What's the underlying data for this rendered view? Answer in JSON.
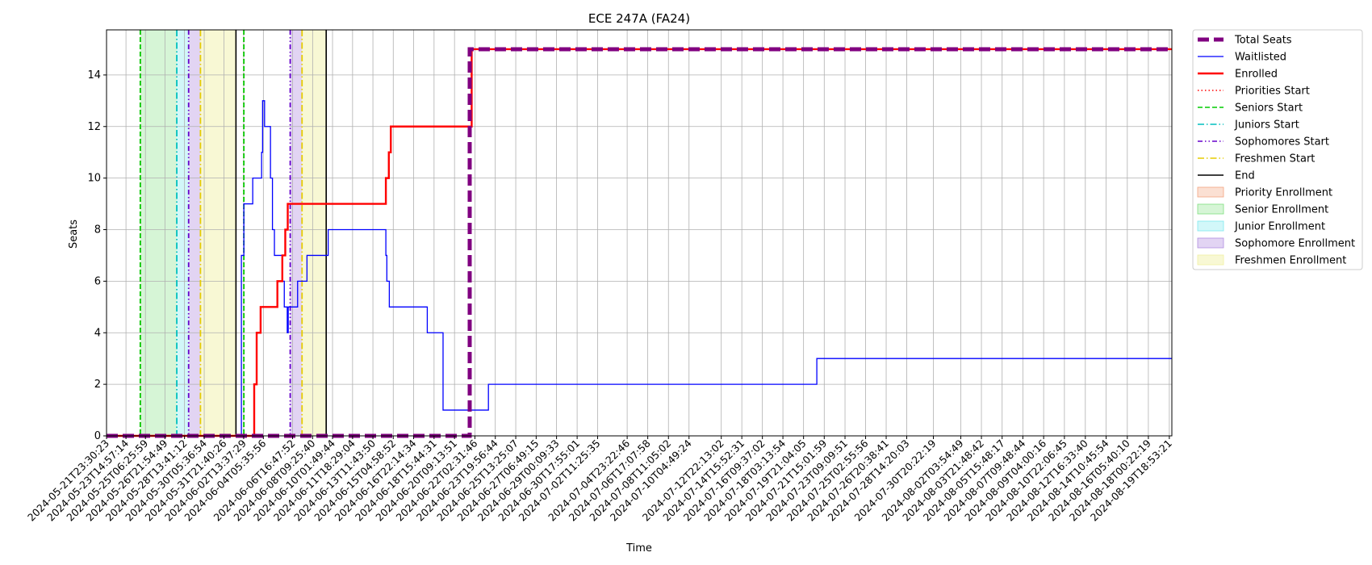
{
  "chart_data": {
    "type": "line",
    "title": "ECE 247A (FA24)",
    "xlabel": "Time",
    "ylabel": "Seats",
    "ylim": [
      0,
      15.75
    ],
    "yticks": [
      0,
      2,
      4,
      6,
      8,
      10,
      12,
      14
    ],
    "x_range": [
      "2024-05-21T23:30:23",
      "2024-08-20T00:00:00"
    ],
    "grid": true,
    "legend_position": "outside-right",
    "xtick_labels": [
      "2024-05-21T23:30:23",
      "2024-05-23T14:57:14",
      "2024-05-25T06:25:59",
      "2024-05-26T21:54:49",
      "2024-05-28T13:41:12",
      "2024-05-30T05:36:54",
      "2024-05-31T21:40:26",
      "2024-06-02T13:37:29",
      "2024-06-04T05:35:56",
      "2024-06-06T16:47:52",
      "2024-06-08T09:25:40",
      "2024-06-10T01:49:44",
      "2024-06-11T18:29:04",
      "2024-06-13T11:43:50",
      "2024-06-15T04:58:52",
      "2024-06-16T22:14:34",
      "2024-06-18T15:44:31",
      "2024-06-20T09:13:51",
      "2024-06-22T02:31:46",
      "2024-06-23T19:56:44",
      "2024-06-25T13:25:07",
      "2024-06-27T06:49:15",
      "2024-06-29T00:09:33",
      "2024-06-30T17:55:01",
      "2024-07-02T11:25:35",
      "2024-07-04T23:22:46",
      "2024-07-06T17:07:58",
      "2024-07-08T11:05:02",
      "2024-07-10T04:49:24",
      "2024-07-12T22:13:02",
      "2024-07-14T15:52:31",
      "2024-07-16T09:37:02",
      "2024-07-18T03:13:54",
      "2024-07-19T21:04:05",
      "2024-07-21T15:01:59",
      "2024-07-23T09:09:51",
      "2024-07-25T02:55:56",
      "2024-07-26T20:38:41",
      "2024-07-28T14:20:03",
      "2024-07-30T20:22:19",
      "2024-08-02T03:54:49",
      "2024-08-03T21:48:42",
      "2024-08-05T15:48:17",
      "2024-08-07T09:48:44",
      "2024-08-09T04:00:16",
      "2024-08-10T22:06:45",
      "2024-08-12T16:33:40",
      "2024-08-14T10:45:54",
      "2024-08-16T05:40:10",
      "2024-08-18T00:22:19",
      "2024-08-19T18:53:21"
    ],
    "series": [
      {
        "name": "Total Seats",
        "color": "#800080",
        "style": "dashed-thick",
        "points": [
          [
            "2024-05-21T23:30:23",
            0
          ],
          [
            "2024-06-21T16:00:00",
            0
          ],
          [
            "2024-06-21T16:00:00",
            15
          ],
          [
            "2024-08-20T00:00:00",
            15
          ]
        ]
      },
      {
        "name": "Waitlisted",
        "color": "#0000ff",
        "style": "solid-thin",
        "points": [
          [
            "2024-05-21T23:30:23",
            0
          ],
          [
            "2024-06-02T09:00:00",
            0
          ],
          [
            "2024-06-02T09:00:00",
            7
          ],
          [
            "2024-06-02T14:00:00",
            7
          ],
          [
            "2024-06-02T14:00:00",
            9
          ],
          [
            "2024-06-03T08:00:00",
            9
          ],
          [
            "2024-06-03T08:00:00",
            10
          ],
          [
            "2024-06-04T02:00:00",
            10
          ],
          [
            "2024-06-04T02:00:00",
            11
          ],
          [
            "2024-06-04T04:00:00",
            11
          ],
          [
            "2024-06-04T04:00:00",
            13
          ],
          [
            "2024-06-04T08:00:00",
            13
          ],
          [
            "2024-06-04T08:00:00",
            12
          ],
          [
            "2024-06-04T20:00:00",
            12
          ],
          [
            "2024-06-04T20:00:00",
            10
          ],
          [
            "2024-06-05T00:00:00",
            10
          ],
          [
            "2024-06-05T00:00:00",
            8
          ],
          [
            "2024-06-05T04:00:00",
            8
          ],
          [
            "2024-06-05T04:00:00",
            7
          ],
          [
            "2024-06-05T20:00:00",
            7
          ],
          [
            "2024-06-05T20:00:00",
            6
          ],
          [
            "2024-06-06T00:00:00",
            6
          ],
          [
            "2024-06-06T00:00:00",
            5
          ],
          [
            "2024-06-06T06:00:00",
            5
          ],
          [
            "2024-06-06T06:00:00",
            4
          ],
          [
            "2024-06-06T08:00:00",
            4
          ],
          [
            "2024-06-06T08:00:00",
            5
          ],
          [
            "2024-06-07T03:00:00",
            5
          ],
          [
            "2024-06-07T03:00:00",
            6
          ],
          [
            "2024-06-07T22:00:00",
            6
          ],
          [
            "2024-06-07T22:00:00",
            7
          ],
          [
            "2024-06-09T17:00:00",
            7
          ],
          [
            "2024-06-09T17:00:00",
            8
          ],
          [
            "2024-06-14T14:00:00",
            8
          ],
          [
            "2024-06-14T14:00:00",
            7
          ],
          [
            "2024-06-14T16:00:00",
            7
          ],
          [
            "2024-06-14T16:00:00",
            6
          ],
          [
            "2024-06-14T21:00:00",
            6
          ],
          [
            "2024-06-14T21:00:00",
            5
          ],
          [
            "2024-06-18T02:00:00",
            5
          ],
          [
            "2024-06-18T02:00:00",
            4
          ],
          [
            "2024-06-19T10:00:00",
            4
          ],
          [
            "2024-06-19T10:00:00",
            1
          ],
          [
            "2024-06-23T06:00:00",
            1
          ],
          [
            "2024-06-23T06:00:00",
            2
          ],
          [
            "2024-07-21T00:00:00",
            2
          ],
          [
            "2024-07-21T00:00:00",
            3
          ],
          [
            "2024-08-20T00:00:00",
            3
          ]
        ]
      },
      {
        "name": "Enrolled",
        "color": "#ff0000",
        "style": "solid-thick",
        "points": [
          [
            "2024-05-21T23:30:23",
            0
          ],
          [
            "2024-06-03T11:00:00",
            0
          ],
          [
            "2024-06-03T11:00:00",
            2
          ],
          [
            "2024-06-03T16:00:00",
            2
          ],
          [
            "2024-06-03T16:00:00",
            4
          ],
          [
            "2024-06-04T00:00:00",
            4
          ],
          [
            "2024-06-04T00:00:00",
            5
          ],
          [
            "2024-06-05T10:00:00",
            5
          ],
          [
            "2024-06-05T10:00:00",
            6
          ],
          [
            "2024-06-05T20:00:00",
            6
          ],
          [
            "2024-06-05T20:00:00",
            7
          ],
          [
            "2024-06-06T02:00:00",
            7
          ],
          [
            "2024-06-06T02:00:00",
            8
          ],
          [
            "2024-06-06T07:00:00",
            8
          ],
          [
            "2024-06-06T07:00:00",
            9
          ],
          [
            "2024-06-14T14:00:00",
            9
          ],
          [
            "2024-06-14T14:00:00",
            10
          ],
          [
            "2024-06-14T20:00:00",
            10
          ],
          [
            "2024-06-14T20:00:00",
            11
          ],
          [
            "2024-06-15T00:00:00",
            11
          ],
          [
            "2024-06-15T00:00:00",
            12
          ],
          [
            "2024-06-21T20:00:00",
            12
          ],
          [
            "2024-06-21T20:00:00",
            15
          ],
          [
            "2024-08-20T00:00:00",
            15
          ]
        ]
      }
    ],
    "vlines": [
      {
        "name": "Priorities Start",
        "color": "#ff0000",
        "style": "dotted",
        "x": [
          "2024-05-24T20:00:00",
          "2024-06-02T14:00:00"
        ]
      },
      {
        "name": "Seniors Start",
        "color": "#00cc00",
        "style": "dashed",
        "x": [
          "2024-05-24T20:00:00",
          "2024-06-02T14:00:00"
        ]
      },
      {
        "name": "Juniors Start",
        "color": "#00bfbf",
        "style": "dashdot",
        "x": [
          "2024-05-27T22:00:00"
        ]
      },
      {
        "name": "Sophomores Start",
        "color": "#6600cc",
        "style": "dashdotdot",
        "x": [
          "2024-05-28T22:00:00",
          "2024-06-06T12:00:00"
        ]
      },
      {
        "name": "Freshmen Start",
        "color": "#e6cc00",
        "style": "dashdot",
        "x": [
          "2024-05-29T22:00:00",
          "2024-06-07T12:00:00"
        ]
      },
      {
        "name": "End",
        "color": "#000000",
        "style": "solid",
        "x": [
          "2024-06-01T22:00:00",
          "2024-06-09T13:00:00"
        ]
      }
    ],
    "spans": [
      {
        "name": "Priority Enrollment",
        "color": "#f4a582",
        "opacity": 0.35,
        "ranges": []
      },
      {
        "name": "Senior Enrollment",
        "color": "#7fe07f",
        "opacity": 0.32,
        "ranges": [
          [
            "2024-05-24T20:00:00",
            "2024-05-27T22:00:00"
          ]
        ]
      },
      {
        "name": "Junior Enrollment",
        "color": "#7fe8ef",
        "opacity": 0.35,
        "ranges": [
          [
            "2024-05-27T22:00:00",
            "2024-05-28T22:00:00"
          ]
        ]
      },
      {
        "name": "Sophomore Enrollment",
        "color": "#b28fe0",
        "opacity": 0.38,
        "ranges": [
          [
            "2024-05-28T22:00:00",
            "2024-05-29T22:00:00"
          ],
          [
            "2024-06-06T12:00:00",
            "2024-06-07T12:00:00"
          ]
        ]
      },
      {
        "name": "Freshmen Enrollment",
        "color": "#f0f0a0",
        "opacity": 0.45,
        "ranges": [
          [
            "2024-05-29T22:00:00",
            "2024-06-01T22:00:00"
          ],
          [
            "2024-06-07T12:00:00",
            "2024-06-09T13:00:00"
          ]
        ]
      }
    ]
  }
}
